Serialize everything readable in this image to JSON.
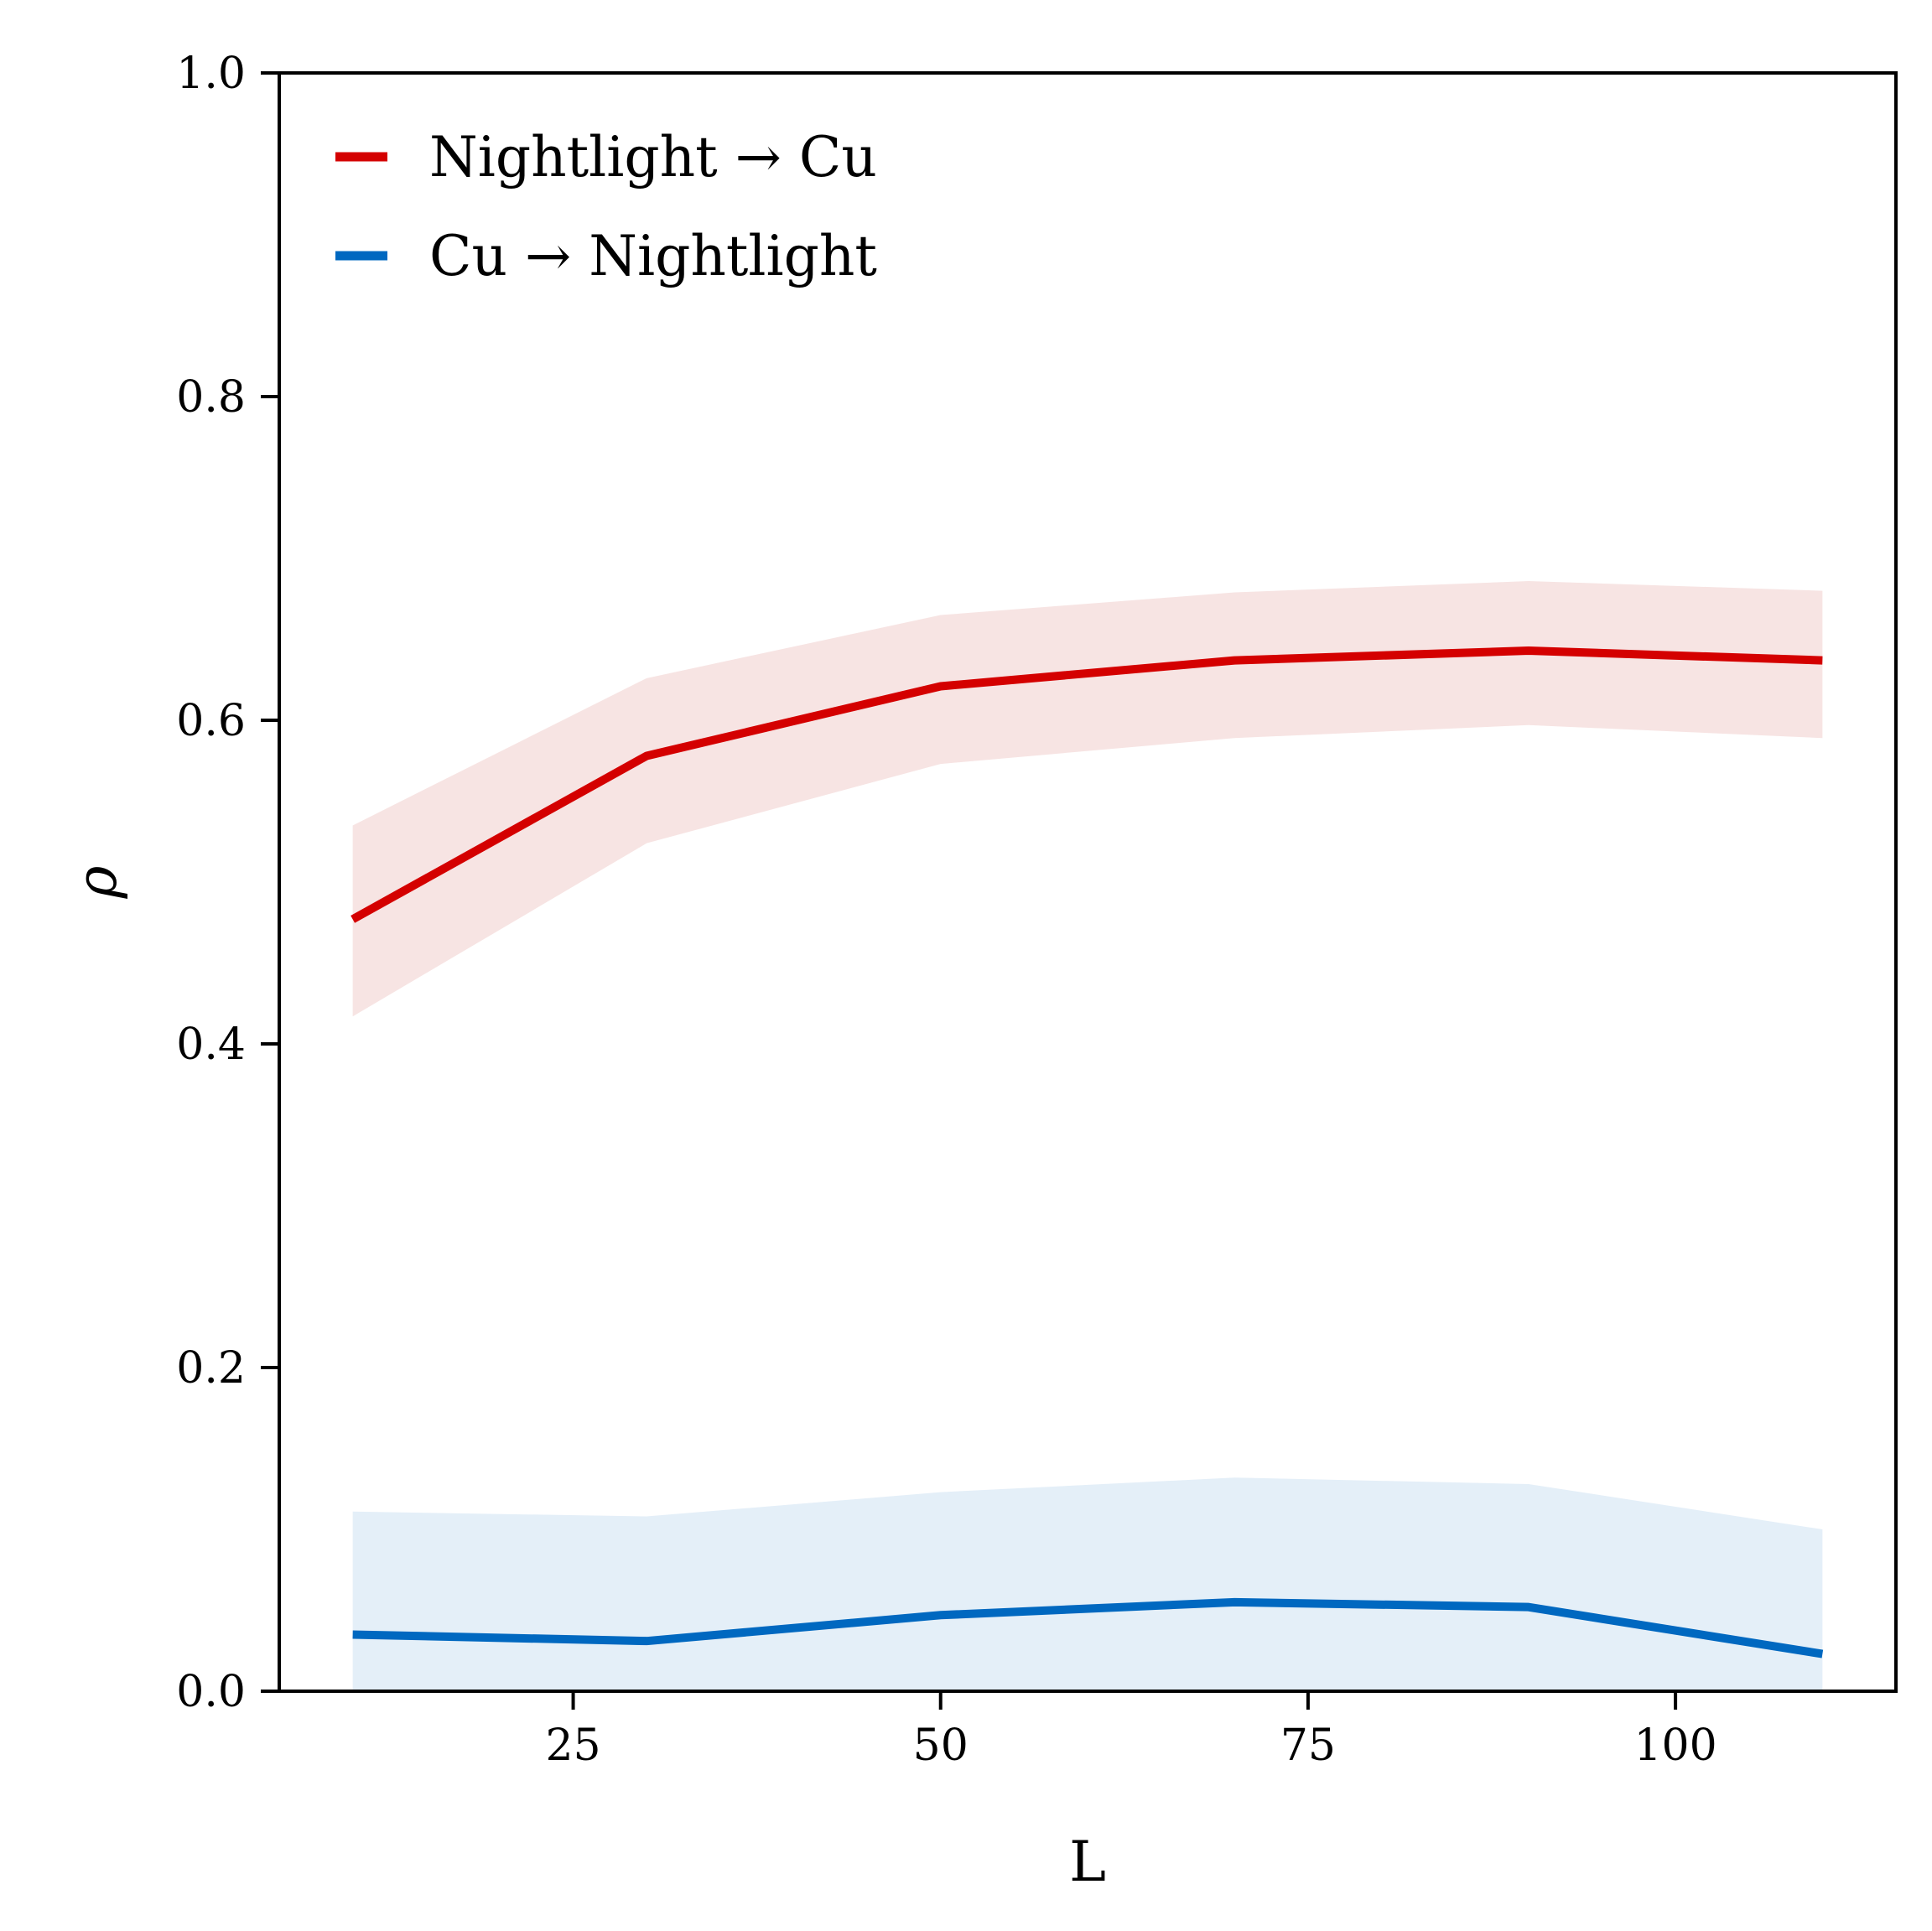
{
  "chart_data": {
    "type": "line",
    "xlabel": "L",
    "ylabel": "ρ",
    "xlim": [
      5,
      115
    ],
    "ylim": [
      0.0,
      1.0
    ],
    "xticks": [
      25,
      50,
      75,
      100
    ],
    "yticks": [
      0.0,
      0.2,
      0.4,
      0.6,
      0.8,
      1.0
    ],
    "xtick_labels": [
      "25",
      "50",
      "75",
      "100"
    ],
    "ytick_labels": [
      "0.0",
      "0.2",
      "0.4",
      "0.6",
      "0.8",
      "1.0"
    ],
    "grid": false,
    "legend_position": "top-left",
    "x": [
      10,
      30,
      50,
      70,
      90,
      110
    ],
    "series": [
      {
        "name": "Nightlight → Cu",
        "color": "#d40000",
        "band_color": "#f7e4e3",
        "values": [
          0.477,
          0.578,
          0.621,
          0.637,
          0.643,
          0.637
        ],
        "lower": [
          0.417,
          0.524,
          0.573,
          0.589,
          0.597,
          0.589
        ],
        "upper": [
          0.535,
          0.626,
          0.665,
          0.679,
          0.686,
          0.68
        ]
      },
      {
        "name": "Cu → Nightlight",
        "color": "#0068c0",
        "band_color": "#e4eff8",
        "values": [
          0.035,
          0.031,
          0.047,
          0.055,
          0.052,
          0.023
        ],
        "lower": [
          0.0,
          0.0,
          0.0,
          0.0,
          0.0,
          0.0
        ],
        "upper": [
          0.111,
          0.108,
          0.123,
          0.132,
          0.128,
          0.1
        ]
      }
    ]
  }
}
